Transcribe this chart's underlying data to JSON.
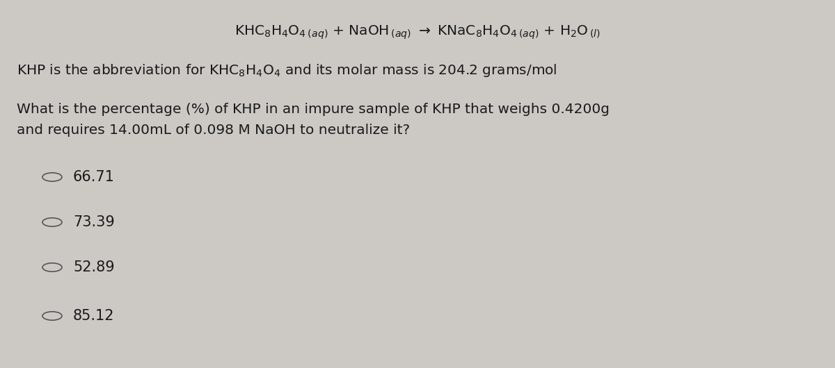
{
  "background_color": "#ccc9c5",
  "text_color": "#1a1a1a",
  "circle_color": "#555555",
  "font_size_eq": 14.5,
  "font_size_text": 14.5,
  "font_size_choices": 15,
  "eq_text": "KHC$_8$H$_4$O$_4$$_{\\,(aq)}$ + NaOH$_{\\,(aq)}$ $\\rightarrow$ KNaC$_8$H$_4$O$_4$$_{\\,(aq)}$ + H$_2$O$_{\\,(l)}$",
  "line2_text": "KHP is the abbreviation for KHC$_8$H$_4$O$_4$ and its molar mass is 204.2 grams/mol",
  "question_line1": "What is the percentage (%) of KHP in an impure sample of KHP that weighs 0.4200g",
  "question_line2": "and requires 14.00mL of 0.098 M NaOH to neutralize it?",
  "choices": [
    "66.71",
    "73.39",
    "52.89",
    "85.12"
  ]
}
